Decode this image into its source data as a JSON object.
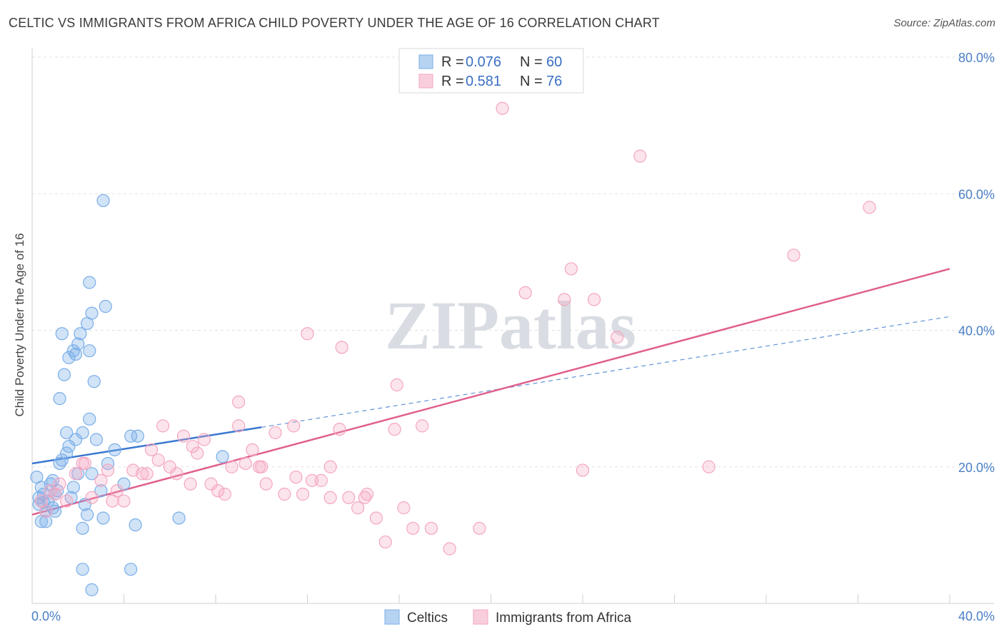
{
  "title": "CELTIC VS IMMIGRANTS FROM AFRICA CHILD POVERTY UNDER THE AGE OF 16 CORRELATION CHART",
  "source": "Source: ZipAtlas.com",
  "watermark": "ZIPatlas",
  "chart_data": {
    "type": "scatter",
    "ylabel": "Child Poverty Under the Age of 16",
    "xlim": [
      0,
      40
    ],
    "ylim": [
      0,
      80
    ],
    "x_ticks": [
      "0.0%",
      "40.0%"
    ],
    "y_ticks": [
      "20.0%",
      "40.0%",
      "60.0%",
      "80.0%"
    ],
    "grid": true,
    "legend_position": "top-center",
    "legend": [
      {
        "series": "Celtics",
        "r_label": "R =",
        "r": "0.076",
        "n_label": "N =",
        "n": "60"
      },
      {
        "series": "Immigrants from Africa",
        "r_label": "R =",
        "r": "0.581",
        "n_label": "N =",
        "n": "76"
      }
    ],
    "series": [
      {
        "name": "Celtics",
        "color": "#7aaee8",
        "line_color": "#3b78d0",
        "trend": {
          "x0": 0,
          "y0": 20.5,
          "x1": 10,
          "y1": 25.8,
          "dashed_to_x": 40,
          "dashed_to_y": 42.0
        },
        "points": [
          [
            0.3,
            15.5
          ],
          [
            0.5,
            14.8
          ],
          [
            0.8,
            17.5
          ],
          [
            0.4,
            12.0
          ],
          [
            1.0,
            16.0
          ],
          [
            0.6,
            13.5
          ],
          [
            0.2,
            18.5
          ],
          [
            1.2,
            20.5
          ],
          [
            1.5,
            22.0
          ],
          [
            1.8,
            17.0
          ],
          [
            0.9,
            18.0
          ],
          [
            1.1,
            16.5
          ],
          [
            2.0,
            19.0
          ],
          [
            0.7,
            15.0
          ],
          [
            1.3,
            21.0
          ],
          [
            1.6,
            23.0
          ],
          [
            2.2,
            25.0
          ],
          [
            1.9,
            24.0
          ],
          [
            0.5,
            16.0
          ],
          [
            0.3,
            14.5
          ],
          [
            2.5,
            27.0
          ],
          [
            1.2,
            30.0
          ],
          [
            1.4,
            33.5
          ],
          [
            1.6,
            36.0
          ],
          [
            1.8,
            37.0
          ],
          [
            2.0,
            38.0
          ],
          [
            2.4,
            41.0
          ],
          [
            1.9,
            36.5
          ],
          [
            2.6,
            42.5
          ],
          [
            1.3,
            39.5
          ],
          [
            2.5,
            47.0
          ],
          [
            3.1,
            59.0
          ],
          [
            3.2,
            43.5
          ],
          [
            2.5,
            37.0
          ],
          [
            2.1,
            39.5
          ],
          [
            2.7,
            32.5
          ],
          [
            1.5,
            25.0
          ],
          [
            2.8,
            24.0
          ],
          [
            3.6,
            22.5
          ],
          [
            4.3,
            24.5
          ],
          [
            4.6,
            24.5
          ],
          [
            3.3,
            20.5
          ],
          [
            2.6,
            19.0
          ],
          [
            3.0,
            16.5
          ],
          [
            4.0,
            17.5
          ],
          [
            2.4,
            13.0
          ],
          [
            3.1,
            12.5
          ],
          [
            2.2,
            11.0
          ],
          [
            4.5,
            11.5
          ],
          [
            6.4,
            12.5
          ],
          [
            2.2,
            5.0
          ],
          [
            4.3,
            5.0
          ],
          [
            2.6,
            2.0
          ],
          [
            0.6,
            12.0
          ],
          [
            0.9,
            14.0
          ],
          [
            1.0,
            13.5
          ],
          [
            8.3,
            21.5
          ],
          [
            0.4,
            17.0
          ],
          [
            1.7,
            15.5
          ],
          [
            2.3,
            14.5
          ]
        ]
      },
      {
        "name": "Immigrants from Africa",
        "color": "#f4a6c0",
        "line_color": "#e0608d",
        "trend": {
          "x0": 0,
          "y0": 13.0,
          "x1": 40,
          "y1": 49.0
        },
        "points": [
          [
            0.4,
            15.0
          ],
          [
            0.8,
            16.5
          ],
          [
            1.2,
            17.5
          ],
          [
            1.5,
            15.0
          ],
          [
            1.9,
            19.0
          ],
          [
            2.3,
            20.5
          ],
          [
            2.6,
            15.5
          ],
          [
            3.0,
            18.0
          ],
          [
            3.3,
            19.5
          ],
          [
            3.7,
            16.5
          ],
          [
            4.0,
            15.0
          ],
          [
            4.4,
            19.5
          ],
          [
            4.8,
            19.0
          ],
          [
            5.2,
            22.5
          ],
          [
            5.5,
            21.0
          ],
          [
            5.7,
            26.0
          ],
          [
            6.0,
            20.0
          ],
          [
            6.3,
            19.0
          ],
          [
            6.6,
            24.5
          ],
          [
            6.9,
            17.5
          ],
          [
            7.2,
            22.0
          ],
          [
            7.5,
            24.0
          ],
          [
            7.8,
            17.5
          ],
          [
            8.1,
            16.5
          ],
          [
            8.4,
            16.0
          ],
          [
            8.7,
            20.0
          ],
          [
            9.0,
            26.0
          ],
          [
            9.3,
            20.5
          ],
          [
            9.6,
            22.5
          ],
          [
            9.9,
            20.0
          ],
          [
            10.2,
            17.5
          ],
          [
            10.6,
            25.0
          ],
          [
            11.0,
            16.0
          ],
          [
            11.4,
            26.0
          ],
          [
            11.8,
            16.0
          ],
          [
            12.2,
            18.0
          ],
          [
            12.6,
            18.0
          ],
          [
            13.0,
            15.5
          ],
          [
            13.4,
            25.5
          ],
          [
            13.8,
            15.5
          ],
          [
            14.2,
            14.0
          ],
          [
            14.6,
            16.0
          ],
          [
            15.0,
            12.5
          ],
          [
            15.4,
            9.0
          ],
          [
            15.8,
            25.5
          ],
          [
            16.2,
            14.0
          ],
          [
            16.6,
            11.0
          ],
          [
            17.0,
            26.0
          ],
          [
            17.4,
            11.0
          ],
          [
            18.2,
            8.0
          ],
          [
            12.0,
            39.5
          ],
          [
            13.5,
            37.5
          ],
          [
            15.9,
            32.0
          ],
          [
            21.5,
            45.5
          ],
          [
            23.2,
            44.5
          ],
          [
            23.5,
            49.0
          ],
          [
            24.5,
            44.5
          ],
          [
            25.5,
            39.0
          ],
          [
            26.5,
            65.5
          ],
          [
            20.5,
            72.5
          ],
          [
            36.5,
            58.0
          ],
          [
            33.2,
            51.0
          ],
          [
            29.5,
            20.0
          ],
          [
            24.0,
            19.5
          ],
          [
            19.5,
            11.0
          ],
          [
            9.0,
            29.5
          ],
          [
            2.2,
            20.5
          ],
          [
            3.5,
            15.0
          ],
          [
            1.0,
            16.0
          ],
          [
            0.6,
            13.5
          ],
          [
            5.0,
            19.0
          ],
          [
            7.0,
            23.0
          ],
          [
            10.0,
            20.0
          ],
          [
            11.5,
            18.5
          ],
          [
            13.0,
            20.0
          ],
          [
            14.5,
            15.5
          ]
        ]
      }
    ]
  }
}
